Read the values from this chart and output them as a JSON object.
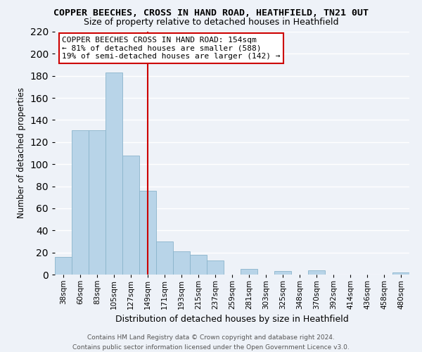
{
  "title": "COPPER BEECHES, CROSS IN HAND ROAD, HEATHFIELD, TN21 0UT",
  "subtitle": "Size of property relative to detached houses in Heathfield",
  "xlabel": "Distribution of detached houses by size in Heathfield",
  "ylabel": "Number of detached properties",
  "bar_color": "#b8d4e8",
  "bar_edge_color": "#8ab4cc",
  "categories": [
    "38sqm",
    "60sqm",
    "83sqm",
    "105sqm",
    "127sqm",
    "149sqm",
    "171sqm",
    "193sqm",
    "215sqm",
    "237sqm",
    "259sqm",
    "281sqm",
    "303sqm",
    "325sqm",
    "348sqm",
    "370sqm",
    "392sqm",
    "414sqm",
    "436sqm",
    "458sqm",
    "480sqm"
  ],
  "values": [
    16,
    131,
    131,
    183,
    108,
    76,
    30,
    21,
    18,
    13,
    0,
    5,
    0,
    3,
    0,
    4,
    0,
    0,
    0,
    0,
    2
  ],
  "ylim": [
    0,
    220
  ],
  "yticks": [
    0,
    20,
    40,
    60,
    80,
    100,
    120,
    140,
    160,
    180,
    200,
    220
  ],
  "vline_x": 5.0,
  "vline_color": "#cc0000",
  "annotation_text": "COPPER BEECHES CROSS IN HAND ROAD: 154sqm\n← 81% of detached houses are smaller (588)\n19% of semi-detached houses are larger (142) →",
  "annotation_box_color": "#ffffff",
  "annotation_box_edge": "#cc0000",
  "footer_line1": "Contains HM Land Registry data © Crown copyright and database right 2024.",
  "footer_line2": "Contains public sector information licensed under the Open Government Licence v3.0.",
  "background_color": "#eef2f8",
  "grid_color": "#ffffff",
  "title_fontsize": 9.5,
  "subtitle_fontsize": 9.0,
  "ylabel_fontsize": 8.5,
  "xlabel_fontsize": 9.0,
  "tick_fontsize": 7.5,
  "footer_fontsize": 6.5,
  "annot_fontsize": 8.0
}
